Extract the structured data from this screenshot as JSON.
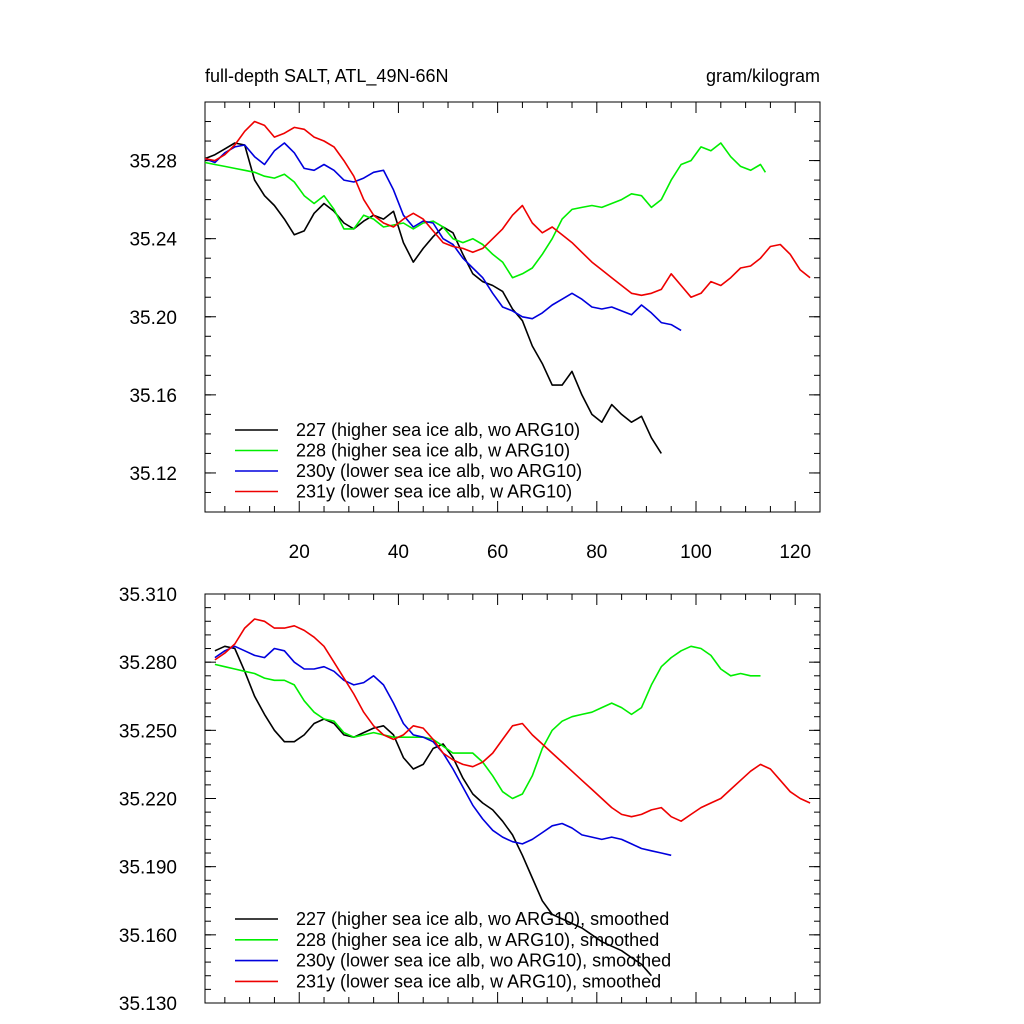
{
  "colors": {
    "227": "#000000",
    "228": "#00ee00",
    "230y": "#0000dd",
    "231y": "#ee0000"
  },
  "chart_data": [
    {
      "type": "line",
      "title_left": "full-depth SALT, ATL_49N-66N",
      "title_right": "gram/kilogram",
      "xlim": [
        1,
        125
      ],
      "ylim": [
        35.1,
        35.31
      ],
      "xticks": [
        20,
        40,
        60,
        80,
        100,
        120
      ],
      "xtick_labels": [
        "20",
        "40",
        "60",
        "80",
        "100",
        "120"
      ],
      "yticks": [
        35.12,
        35.16,
        35.2,
        35.24,
        35.28
      ],
      "ytick_labels": [
        "35.12",
        "35.16",
        "35.20",
        "35.24",
        "35.28"
      ],
      "series": [
        {
          "key": "227",
          "name": "227 (higher sea ice alb, wo ARG10)",
          "x": [
            1,
            3,
            5,
            7,
            9,
            11,
            13,
            15,
            17,
            19,
            21,
            23,
            25,
            27,
            29,
            31,
            33,
            35,
            37,
            39,
            41,
            43,
            45,
            47,
            49,
            51,
            53,
            55,
            57,
            59,
            61,
            63,
            65,
            67,
            69,
            71,
            73,
            75,
            77,
            79,
            81,
            83,
            85,
            87,
            89,
            91,
            93
          ],
          "y": [
            35.281,
            35.283,
            35.286,
            35.289,
            35.288,
            35.27,
            35.262,
            35.257,
            35.25,
            35.242,
            35.244,
            35.253,
            35.258,
            35.254,
            35.248,
            35.245,
            35.249,
            35.252,
            35.25,
            35.254,
            35.238,
            35.228,
            35.235,
            35.241,
            35.246,
            35.243,
            35.232,
            35.222,
            35.218,
            35.216,
            35.213,
            35.204,
            35.198,
            35.185,
            35.176,
            35.165,
            35.165,
            35.172,
            35.16,
            35.15,
            35.146,
            35.155,
            35.15,
            35.146,
            35.149,
            35.138,
            35.13
          ]
        },
        {
          "key": "228",
          "name": "228 (higher sea ice alb, w ARG10)",
          "x": [
            1,
            3,
            5,
            7,
            9,
            11,
            13,
            15,
            17,
            19,
            21,
            23,
            25,
            27,
            29,
            31,
            33,
            35,
            37,
            39,
            41,
            43,
            45,
            47,
            49,
            51,
            53,
            55,
            57,
            59,
            61,
            63,
            65,
            67,
            69,
            71,
            73,
            75,
            77,
            79,
            81,
            83,
            85,
            87,
            89,
            91,
            93,
            95,
            97,
            99,
            101,
            103,
            105,
            107,
            109,
            111,
            113,
            114
          ],
          "y": [
            35.279,
            35.278,
            35.277,
            35.276,
            35.275,
            35.274,
            35.272,
            35.271,
            35.273,
            35.269,
            35.262,
            35.258,
            35.262,
            35.255,
            35.245,
            35.245,
            35.252,
            35.25,
            35.246,
            35.247,
            35.248,
            35.245,
            35.248,
            35.249,
            35.246,
            35.24,
            35.238,
            35.24,
            35.237,
            35.232,
            35.228,
            35.22,
            35.222,
            35.225,
            35.232,
            35.24,
            35.25,
            35.255,
            35.256,
            35.257,
            35.256,
            35.258,
            35.26,
            35.263,
            35.262,
            35.256,
            35.26,
            35.27,
            35.278,
            35.28,
            35.287,
            35.285,
            35.289,
            35.282,
            35.277,
            35.275,
            35.278,
            35.274
          ]
        },
        {
          "key": "230y",
          "name": "230y (lower sea ice alb, wo ARG10)",
          "x": [
            1,
            3,
            5,
            7,
            9,
            11,
            13,
            15,
            17,
            19,
            21,
            23,
            25,
            27,
            29,
            31,
            33,
            35,
            37,
            39,
            41,
            43,
            45,
            47,
            49,
            51,
            53,
            55,
            57,
            59,
            61,
            63,
            65,
            67,
            69,
            71,
            73,
            75,
            77,
            79,
            81,
            83,
            85,
            87,
            89,
            91,
            93,
            95,
            97
          ],
          "y": [
            35.281,
            35.279,
            35.284,
            35.287,
            35.288,
            35.282,
            35.278,
            35.285,
            35.289,
            35.284,
            35.276,
            35.275,
            35.278,
            35.275,
            35.27,
            35.269,
            35.271,
            35.274,
            35.275,
            35.265,
            35.252,
            35.246,
            35.249,
            35.248,
            35.24,
            35.237,
            35.23,
            35.225,
            35.22,
            35.212,
            35.205,
            35.203,
            35.2,
            35.199,
            35.202,
            35.206,
            35.209,
            35.212,
            35.209,
            35.205,
            35.204,
            35.205,
            35.203,
            35.201,
            35.206,
            35.202,
            35.197,
            35.196,
            35.193
          ]
        },
        {
          "key": "231y",
          "name": "231y (lower sea ice alb, w ARG10)",
          "x": [
            1,
            3,
            5,
            7,
            9,
            11,
            13,
            15,
            17,
            19,
            21,
            23,
            25,
            27,
            29,
            31,
            33,
            35,
            37,
            39,
            41,
            43,
            45,
            47,
            49,
            51,
            53,
            55,
            57,
            59,
            61,
            63,
            65,
            67,
            69,
            71,
            73,
            75,
            77,
            79,
            81,
            83,
            85,
            87,
            89,
            91,
            93,
            95,
            97,
            99,
            101,
            103,
            105,
            107,
            109,
            111,
            113,
            115,
            117,
            119,
            121,
            123
          ],
          "y": [
            35.281,
            35.28,
            35.283,
            35.288,
            35.295,
            35.3,
            35.298,
            35.292,
            35.294,
            35.297,
            35.296,
            35.292,
            35.29,
            35.287,
            35.28,
            35.272,
            35.26,
            35.252,
            35.248,
            35.246,
            35.25,
            35.253,
            35.25,
            35.244,
            35.238,
            35.236,
            35.235,
            35.233,
            35.235,
            35.24,
            35.245,
            35.252,
            35.257,
            35.248,
            35.243,
            35.246,
            35.242,
            35.238,
            35.233,
            35.228,
            35.224,
            35.22,
            35.216,
            35.212,
            35.211,
            35.212,
            35.214,
            35.222,
            35.216,
            35.21,
            35.212,
            35.218,
            35.216,
            35.22,
            35.225,
            35.226,
            35.23,
            35.236,
            35.237,
            35.232,
            35.224,
            35.22
          ]
        }
      ],
      "legend": {
        "position": "bottom-left",
        "entries": [
          "227 (higher sea ice alb, wo ARG10)",
          "228 (higher sea ice alb, w ARG10)",
          "230y (lower sea ice alb, wo ARG10)",
          "231y (lower sea ice alb, w ARG10)"
        ]
      }
    },
    {
      "type": "line",
      "xlim": [
        1,
        125
      ],
      "ylim": [
        35.13,
        35.31
      ],
      "xticks": [
        20,
        40,
        60,
        80,
        100,
        120
      ],
      "yticks": [
        35.13,
        35.16,
        35.19,
        35.22,
        35.25,
        35.28,
        35.31
      ],
      "ytick_labels": [
        "35.130",
        "35.160",
        "35.190",
        "35.220",
        "35.250",
        "35.280",
        "35.310"
      ],
      "series": [
        {
          "key": "227",
          "name": "227 (higher sea ice alb, wo ARG10), smoothed",
          "x": [
            3,
            5,
            7,
            9,
            11,
            13,
            15,
            17,
            19,
            21,
            23,
            25,
            27,
            29,
            31,
            33,
            35,
            37,
            39,
            41,
            43,
            45,
            47,
            49,
            51,
            53,
            55,
            57,
            59,
            61,
            63,
            65,
            67,
            69,
            71,
            73,
            75,
            77,
            79,
            81,
            83,
            85,
            87,
            89,
            91
          ],
          "y": [
            35.285,
            35.287,
            35.286,
            35.276,
            35.265,
            35.257,
            35.25,
            35.245,
            35.245,
            35.248,
            35.253,
            35.255,
            35.253,
            35.248,
            35.247,
            35.249,
            35.251,
            35.252,
            35.248,
            35.238,
            35.233,
            35.235,
            35.242,
            35.244,
            35.238,
            35.229,
            35.222,
            35.218,
            35.215,
            35.21,
            35.204,
            35.195,
            35.185,
            35.175,
            35.169,
            35.167,
            35.165,
            35.163,
            35.16,
            35.157,
            35.155,
            35.153,
            35.15,
            35.147,
            35.142
          ]
        },
        {
          "key": "228",
          "name": "228 (higher sea ice alb, w ARG10), smoothed",
          "x": [
            3,
            5,
            7,
            9,
            11,
            13,
            15,
            17,
            19,
            21,
            23,
            25,
            27,
            29,
            31,
            33,
            35,
            37,
            39,
            41,
            43,
            45,
            47,
            49,
            51,
            53,
            55,
            57,
            59,
            61,
            63,
            65,
            67,
            69,
            71,
            73,
            75,
            77,
            79,
            81,
            83,
            85,
            87,
            89,
            91,
            93,
            95,
            97,
            99,
            101,
            103,
            105,
            107,
            109,
            111,
            113
          ],
          "y": [
            35.279,
            35.278,
            35.277,
            35.276,
            35.275,
            35.273,
            35.272,
            35.272,
            35.27,
            35.263,
            35.258,
            35.255,
            35.254,
            35.249,
            35.247,
            35.248,
            35.249,
            35.248,
            35.247,
            35.247,
            35.247,
            35.247,
            35.246,
            35.243,
            35.24,
            35.24,
            35.24,
            35.236,
            35.23,
            35.223,
            35.22,
            35.222,
            35.23,
            35.242,
            35.25,
            35.254,
            35.256,
            35.257,
            35.258,
            35.26,
            35.262,
            35.26,
            35.257,
            35.26,
            35.27,
            35.278,
            35.282,
            35.285,
            35.287,
            35.286,
            35.283,
            35.277,
            35.274,
            35.275,
            35.274,
            35.274
          ]
        },
        {
          "key": "230y",
          "name": "230y (lower sea ice alb, wo ARG10), smoothed",
          "x": [
            3,
            5,
            7,
            9,
            11,
            13,
            15,
            17,
            19,
            21,
            23,
            25,
            27,
            29,
            31,
            33,
            35,
            37,
            39,
            41,
            43,
            45,
            47,
            49,
            51,
            53,
            55,
            57,
            59,
            61,
            63,
            65,
            67,
            69,
            71,
            73,
            75,
            77,
            79,
            81,
            83,
            85,
            87,
            89,
            91,
            93,
            95
          ],
          "y": [
            35.282,
            35.285,
            35.287,
            35.285,
            35.283,
            35.282,
            35.286,
            35.285,
            35.28,
            35.277,
            35.277,
            35.278,
            35.276,
            35.272,
            35.27,
            35.271,
            35.274,
            35.27,
            35.262,
            35.253,
            35.248,
            35.247,
            35.245,
            35.24,
            35.233,
            35.225,
            35.217,
            35.211,
            35.206,
            35.203,
            35.201,
            35.2,
            35.202,
            35.205,
            35.208,
            35.209,
            35.207,
            35.204,
            35.203,
            35.202,
            35.203,
            35.202,
            35.2,
            35.198,
            35.197,
            35.196,
            35.195
          ]
        },
        {
          "key": "231y",
          "name": "231y (lower sea ice alb, w ARG10), smoothed",
          "x": [
            3,
            5,
            7,
            9,
            11,
            13,
            15,
            17,
            19,
            21,
            23,
            25,
            27,
            29,
            31,
            33,
            35,
            37,
            39,
            41,
            43,
            45,
            47,
            49,
            51,
            53,
            55,
            57,
            59,
            61,
            63,
            65,
            67,
            69,
            71,
            73,
            75,
            77,
            79,
            81,
            83,
            85,
            87,
            89,
            91,
            93,
            95,
            97,
            99,
            101,
            103,
            105,
            107,
            109,
            111,
            113,
            115,
            117,
            119,
            121,
            123
          ],
          "y": [
            35.281,
            35.284,
            35.288,
            35.295,
            35.299,
            35.298,
            35.295,
            35.295,
            35.296,
            35.294,
            35.291,
            35.287,
            35.28,
            35.273,
            35.266,
            35.258,
            35.252,
            35.248,
            35.246,
            35.248,
            35.252,
            35.251,
            35.246,
            35.24,
            35.237,
            35.235,
            35.234,
            35.236,
            35.24,
            35.246,
            35.252,
            35.253,
            35.248,
            35.244,
            35.24,
            35.236,
            35.232,
            35.228,
            35.224,
            35.22,
            35.216,
            35.213,
            35.212,
            35.213,
            35.215,
            35.216,
            35.212,
            35.21,
            35.213,
            35.216,
            35.218,
            35.22,
            35.224,
            35.228,
            35.232,
            35.235,
            35.233,
            35.228,
            35.223,
            35.22,
            35.218
          ]
        }
      ],
      "legend": {
        "position": "bottom-left",
        "entries": [
          "227 (higher sea ice alb, wo ARG10), smoothed",
          "228 (higher sea ice alb, w ARG10), smoothed",
          "230y (lower sea ice alb, wo ARG10), smoothed",
          "231y (lower sea ice alb, w ARG10), smoothed"
        ]
      }
    }
  ]
}
